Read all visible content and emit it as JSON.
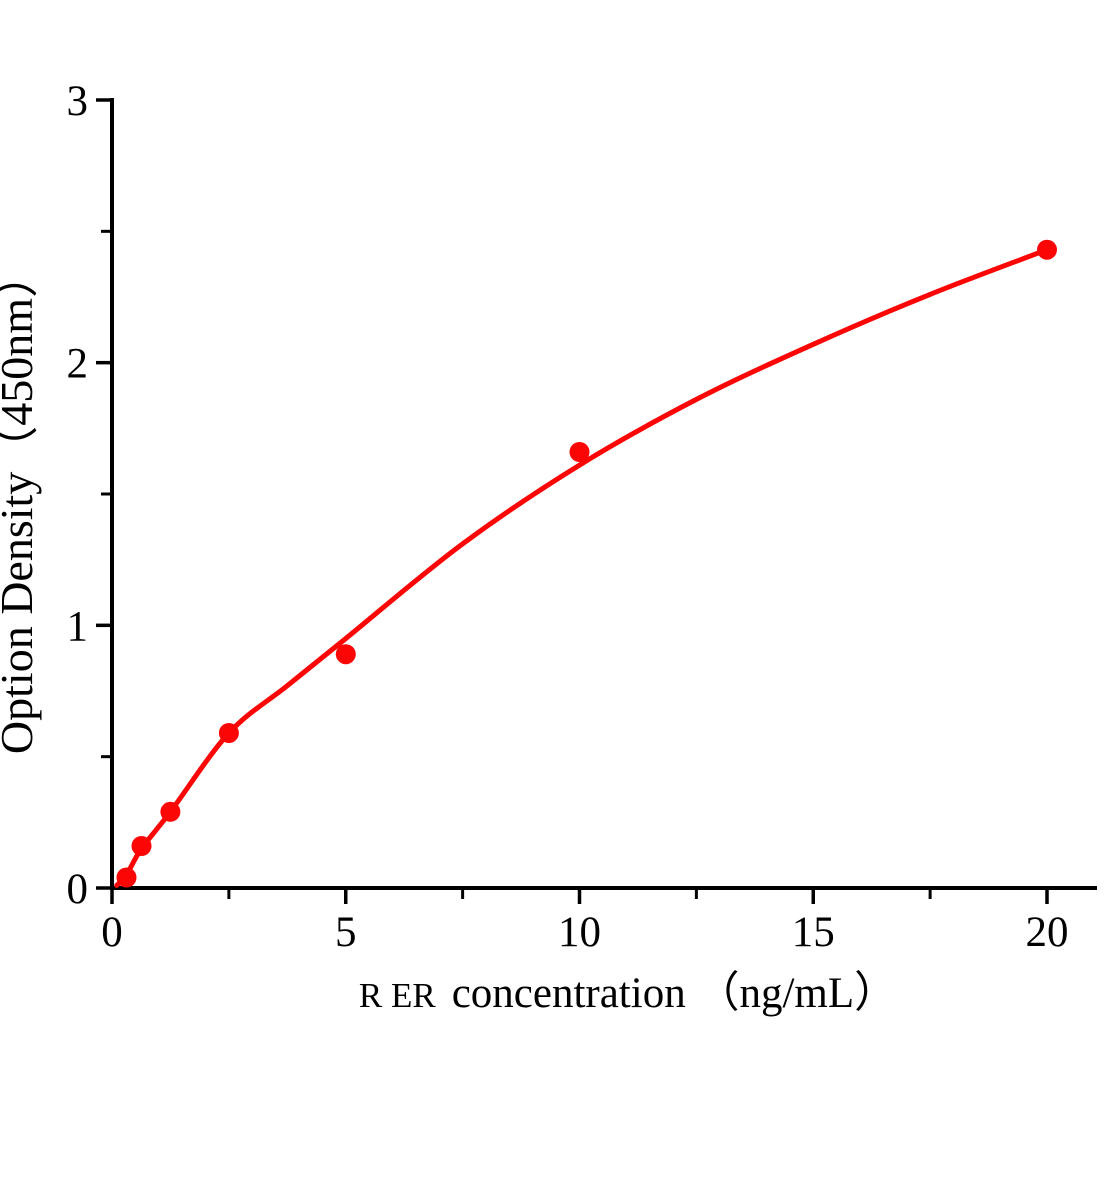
{
  "figure": {
    "background": "#ffffff",
    "axis_color": "#000000",
    "accent_red": "#fb0505"
  },
  "chart_data": {
    "type": "scatter",
    "title": "",
    "xlabel": {
      "abbr": "R ER",
      "text": "concentration （ng/mL）",
      "full": "R ER concentration （ng/mL）"
    },
    "ylabel": "Option Density（450nm）",
    "xlim": [
      0,
      21
    ],
    "ylim": [
      0,
      3
    ],
    "x_major_ticks": [
      0,
      5,
      10,
      15,
      20
    ],
    "x_minor_ticks": [
      2.5,
      7.5,
      12.5,
      17.5
    ],
    "y_major_ticks": [
      0,
      1,
      2,
      3
    ],
    "y_minor_ticks": [
      0.5,
      1.5,
      2.5
    ],
    "grid": false,
    "legend": null,
    "series": [
      {
        "name": "standard-points",
        "type": "scatter",
        "marker": "circle",
        "color": "#fb0505",
        "points": [
          [
            0.31,
            0.04
          ],
          [
            0.63,
            0.16
          ],
          [
            1.25,
            0.29
          ],
          [
            2.5,
            0.59
          ],
          [
            5,
            0.89
          ],
          [
            10,
            1.66
          ],
          [
            20,
            2.43
          ]
        ]
      },
      {
        "name": "fit-curve",
        "type": "line",
        "color": "#fb0505",
        "points": [
          [
            0.1,
            0.01
          ],
          [
            0.31,
            0.05
          ],
          [
            0.63,
            0.15
          ],
          [
            1.25,
            0.29
          ],
          [
            2.5,
            0.59
          ],
          [
            3.75,
            0.77
          ],
          [
            5,
            0.95
          ],
          [
            7.5,
            1.31
          ],
          [
            10,
            1.61
          ],
          [
            12.5,
            1.86
          ],
          [
            15,
            2.07
          ],
          [
            17.5,
            2.26
          ],
          [
            20,
            2.43
          ]
        ]
      }
    ]
  }
}
